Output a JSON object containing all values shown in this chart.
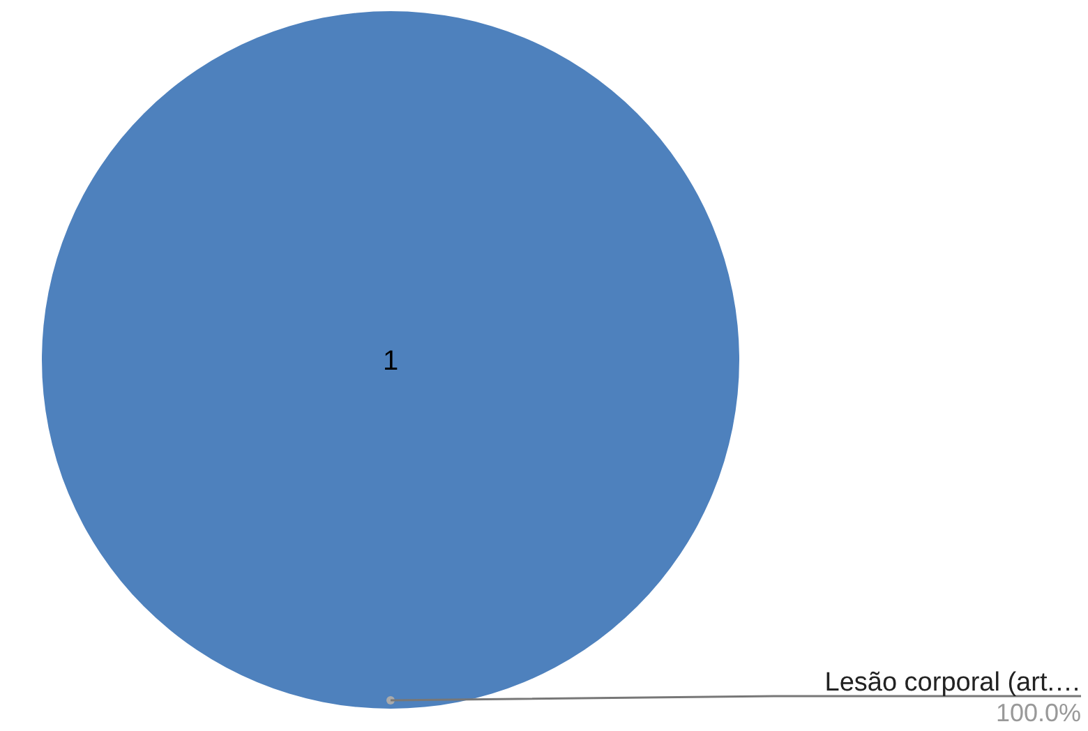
{
  "chart_data": {
    "type": "pie",
    "categories": [
      "Lesão corporal (art.…"
    ],
    "values": [
      1
    ],
    "colors": [
      "#4e81bd"
    ],
    "data_labels": true,
    "annotations": [
      "100.0%"
    ]
  }
}
